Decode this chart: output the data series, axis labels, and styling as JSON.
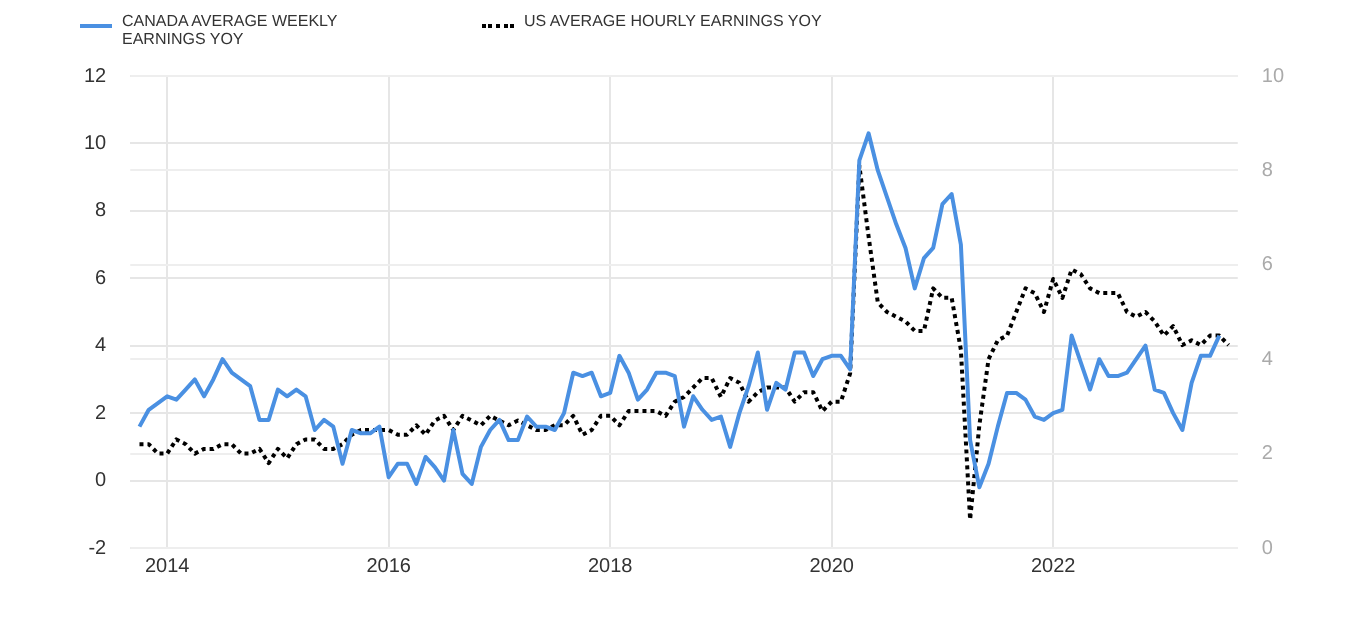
{
  "chart_data": {
    "type": "line",
    "legend": "top left",
    "grid": true,
    "xlim": [
      "2013-09",
      "2023-09"
    ],
    "xticks": [
      "2014",
      "2016",
      "2018",
      "2020",
      "2022"
    ],
    "ylim": [
      -2,
      12
    ],
    "yticks": [
      -2,
      0,
      2,
      4,
      6,
      8,
      10,
      12
    ],
    "y2lim": [
      0,
      10
    ],
    "y2ticks": [
      0,
      2,
      4,
      6,
      8,
      10
    ],
    "series": [
      {
        "name": "CANADA AVERAGE WEEKLY EARNINGS YOY",
        "color": "#4a90e2",
        "line_style": "solid",
        "x": [
          "2013-10",
          "2013-11",
          "2013-12",
          "2014-01",
          "2014-02",
          "2014-03",
          "2014-04",
          "2014-05",
          "2014-06",
          "2014-07",
          "2014-08",
          "2014-09",
          "2014-10",
          "2014-11",
          "2014-12",
          "2015-01",
          "2015-02",
          "2015-03",
          "2015-04",
          "2015-05",
          "2015-06",
          "2015-07",
          "2015-08",
          "2015-09",
          "2015-10",
          "2015-11",
          "2015-12",
          "2016-01",
          "2016-02",
          "2016-03",
          "2016-04",
          "2016-05",
          "2016-06",
          "2016-07",
          "2016-08",
          "2016-09",
          "2016-10",
          "2016-11",
          "2016-12",
          "2017-01",
          "2017-02",
          "2017-03",
          "2017-04",
          "2017-05",
          "2017-06",
          "2017-07",
          "2017-08",
          "2017-09",
          "2017-10",
          "2017-11",
          "2017-12",
          "2018-01",
          "2018-02",
          "2018-03",
          "2018-04",
          "2018-05",
          "2018-06",
          "2018-07",
          "2018-08",
          "2018-09",
          "2018-10",
          "2018-11",
          "2018-12",
          "2019-01",
          "2019-02",
          "2019-03",
          "2019-04",
          "2019-05",
          "2019-06",
          "2019-07",
          "2019-08",
          "2019-09",
          "2019-10",
          "2019-11",
          "2019-12",
          "2020-01",
          "2020-02",
          "2020-03",
          "2020-04",
          "2020-05",
          "2020-06",
          "2020-07",
          "2020-08",
          "2020-09",
          "2020-10",
          "2020-11",
          "2020-12",
          "2021-01",
          "2021-02",
          "2021-03",
          "2021-04",
          "2021-05",
          "2021-06",
          "2021-07",
          "2021-08",
          "2021-09",
          "2021-10",
          "2021-11",
          "2021-12",
          "2022-01",
          "2022-02",
          "2022-03",
          "2022-04",
          "2022-05",
          "2022-06",
          "2022-07",
          "2022-08",
          "2022-09",
          "2022-10",
          "2022-11",
          "2022-12",
          "2023-01",
          "2023-02",
          "2023-03",
          "2023-04",
          "2023-05",
          "2023-06",
          "2023-07"
        ],
        "values": [
          1.6,
          2.1,
          2.3,
          2.5,
          2.4,
          2.7,
          3.0,
          2.5,
          3.0,
          3.6,
          3.2,
          3.0,
          2.8,
          1.8,
          1.8,
          2.7,
          2.5,
          2.7,
          2.5,
          1.5,
          1.8,
          1.6,
          0.5,
          1.5,
          1.4,
          1.4,
          1.6,
          0.1,
          0.5,
          0.5,
          -0.1,
          0.7,
          0.4,
          0.0,
          1.5,
          0.2,
          -0.1,
          1.0,
          1.5,
          1.8,
          1.2,
          1.2,
          1.9,
          1.6,
          1.6,
          1.5,
          2.0,
          3.2,
          3.1,
          3.2,
          2.5,
          2.6,
          3.7,
          3.2,
          2.4,
          2.7,
          3.2,
          3.2,
          3.1,
          1.6,
          2.5,
          2.1,
          1.8,
          1.9,
          1.0,
          2.0,
          2.8,
          3.8,
          2.1,
          2.9,
          2.7,
          3.8,
          3.8,
          3.1,
          3.6,
          3.7,
          3.7,
          3.3,
          9.5,
          10.3,
          9.2,
          8.4,
          7.6,
          6.9,
          5.7,
          6.6,
          6.9,
          8.2,
          8.5,
          7.0,
          1.2,
          -0.2,
          0.5,
          1.6,
          2.6,
          2.6,
          2.4,
          1.9,
          1.8,
          2.0,
          2.1,
          4.3,
          3.5,
          2.7,
          3.6,
          3.1,
          3.1,
          3.2,
          3.6,
          4.0,
          2.7,
          2.6,
          2.0,
          1.5,
          2.9,
          3.7,
          3.7,
          4.3
        ]
      },
      {
        "name": "US AVERAGE HOURLY EARNINGS YOY",
        "color": "#000000",
        "line_style": "dotted",
        "axis": "y2",
        "x": [
          "2013-10",
          "2013-11",
          "2013-12",
          "2014-01",
          "2014-02",
          "2014-03",
          "2014-04",
          "2014-05",
          "2014-06",
          "2014-07",
          "2014-08",
          "2014-09",
          "2014-10",
          "2014-11",
          "2014-12",
          "2015-01",
          "2015-02",
          "2015-03",
          "2015-04",
          "2015-05",
          "2015-06",
          "2015-07",
          "2015-08",
          "2015-09",
          "2015-10",
          "2015-11",
          "2015-12",
          "2016-01",
          "2016-02",
          "2016-03",
          "2016-04",
          "2016-05",
          "2016-06",
          "2016-07",
          "2016-08",
          "2016-09",
          "2016-10",
          "2016-11",
          "2016-12",
          "2017-01",
          "2017-02",
          "2017-03",
          "2017-04",
          "2017-05",
          "2017-06",
          "2017-07",
          "2017-08",
          "2017-09",
          "2017-10",
          "2017-11",
          "2017-12",
          "2018-01",
          "2018-02",
          "2018-03",
          "2018-04",
          "2018-05",
          "2018-06",
          "2018-07",
          "2018-08",
          "2018-09",
          "2018-10",
          "2018-11",
          "2018-12",
          "2019-01",
          "2019-02",
          "2019-03",
          "2019-04",
          "2019-05",
          "2019-06",
          "2019-07",
          "2019-08",
          "2019-09",
          "2019-10",
          "2019-11",
          "2019-12",
          "2020-01",
          "2020-02",
          "2020-03",
          "2020-04",
          "2020-05",
          "2020-06",
          "2020-07",
          "2020-08",
          "2020-09",
          "2020-10",
          "2020-11",
          "2020-12",
          "2021-01",
          "2021-02",
          "2021-03",
          "2021-04",
          "2021-05",
          "2021-06",
          "2021-07",
          "2021-08",
          "2021-09",
          "2021-10",
          "2021-11",
          "2021-12",
          "2022-01",
          "2022-02",
          "2022-03",
          "2022-04",
          "2022-05",
          "2022-06",
          "2022-07",
          "2022-08",
          "2022-09",
          "2022-10",
          "2022-11",
          "2022-12",
          "2023-01",
          "2023-02",
          "2023-03",
          "2023-04",
          "2023-05",
          "2023-06",
          "2023-07",
          "2023-08"
        ],
        "values": [
          2.2,
          2.2,
          2.0,
          2.0,
          2.3,
          2.2,
          2.0,
          2.1,
          2.1,
          2.2,
          2.2,
          2.0,
          2.0,
          2.1,
          1.8,
          2.1,
          1.9,
          2.2,
          2.3,
          2.3,
          2.1,
          2.1,
          2.2,
          2.4,
          2.5,
          2.5,
          2.5,
          2.5,
          2.4,
          2.4,
          2.6,
          2.4,
          2.7,
          2.8,
          2.5,
          2.8,
          2.7,
          2.6,
          2.8,
          2.7,
          2.6,
          2.7,
          2.6,
          2.5,
          2.5,
          2.6,
          2.6,
          2.8,
          2.4,
          2.5,
          2.8,
          2.8,
          2.6,
          2.9,
          2.9,
          2.9,
          2.9,
          2.8,
          3.1,
          3.2,
          3.4,
          3.6,
          3.6,
          3.2,
          3.6,
          3.5,
          3.1,
          3.3,
          3.4,
          3.4,
          3.4,
          3.1,
          3.3,
          3.3,
          2.9,
          3.1,
          3.1,
          3.7,
          8.1,
          6.6,
          5.2,
          5.0,
          4.9,
          4.8,
          4.6,
          4.6,
          5.5,
          5.3,
          5.3,
          4.2,
          0.6,
          2.6,
          4.0,
          4.4,
          4.5,
          5.0,
          5.5,
          5.4,
          5.0,
          5.7,
          5.3,
          5.9,
          5.8,
          5.5,
          5.4,
          5.4,
          5.4,
          5.0,
          4.9,
          5.0,
          4.8,
          4.5,
          4.7,
          4.3,
          4.4,
          4.3,
          4.5,
          4.5,
          4.3
        ]
      }
    ]
  }
}
